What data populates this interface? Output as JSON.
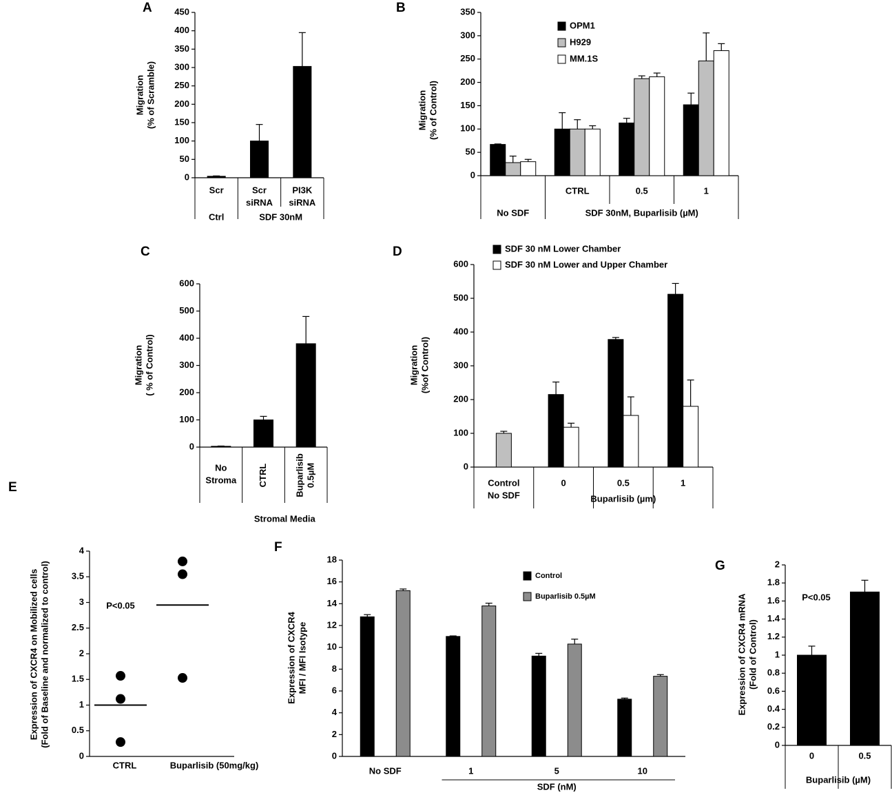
{
  "chart_data": [
    {
      "type": "bar",
      "panel": "A",
      "ylabel": [
        "Migration",
        "(% of Scramble)"
      ],
      "categories": [
        "Scr",
        [
          "Scr",
          "siRNA"
        ],
        [
          "PI3K",
          "siRNA"
        ]
      ],
      "groups": [
        {
          "label": "Ctrl",
          "count": 1
        },
        {
          "label": "SDF 30nM",
          "count": 2
        }
      ],
      "series": [
        {
          "color": "#000000",
          "values": [
            4,
            100,
            303
          ],
          "errors": [
            1,
            45,
            92
          ]
        }
      ],
      "ylim": [
        0,
        450
      ],
      "yticks": [
        0,
        50,
        100,
        150,
        200,
        250,
        300,
        350,
        400,
        450
      ]
    },
    {
      "type": "bar",
      "panel": "B",
      "ylabel": [
        "Migration",
        "(% of Control)"
      ],
      "categories": [
        null,
        "CTRL",
        "0.5",
        "1"
      ],
      "groups": [
        {
          "label": "No SDF",
          "count": 1
        },
        {
          "label": "SDF 30nM, Buparlisib (µM)",
          "count": 3
        }
      ],
      "series": [
        {
          "name": "OPM1",
          "color": "#000000",
          "values": [
            67,
            100,
            113,
            152
          ],
          "errors": [
            1,
            35,
            10,
            25
          ]
        },
        {
          "name": "H929",
          "color": "#bfbfbf",
          "values": [
            28,
            100,
            208,
            246
          ],
          "errors": [
            14,
            20,
            6,
            60
          ]
        },
        {
          "name": "MM.1S",
          "color": "#ffffff",
          "values": [
            30,
            100,
            212,
            268
          ],
          "errors": [
            5,
            7,
            8,
            15
          ]
        }
      ],
      "ylim": [
        0,
        350
      ],
      "yticks": [
        0,
        50,
        100,
        150,
        200,
        250,
        300,
        350
      ]
    },
    {
      "type": "bar",
      "panel": "C",
      "ylabel": [
        "Migration",
        "( % of Control)"
      ],
      "categories": [
        [
          "No",
          "Stroma"
        ],
        "CTRL",
        [
          "Buparlisib",
          "0.5µM"
        ]
      ],
      "rotated": [
        false,
        true,
        true
      ],
      "groups": [
        {
          "label": null,
          "count": 1
        },
        {
          "label": "Stromal Media",
          "count": 2
        }
      ],
      "series": [
        {
          "color": "#000000",
          "values": [
            3,
            100,
            380
          ],
          "errors": [
            1,
            13,
            100
          ]
        }
      ],
      "ylim": [
        0,
        600
      ],
      "yticks": [
        0,
        100,
        200,
        300,
        400,
        500,
        600
      ]
    },
    {
      "type": "bar",
      "panel": "D",
      "ylabel": [
        "Migration",
        "(%of Control)"
      ],
      "categories": [
        [
          "Control",
          "No SDF"
        ],
        "0",
        "0.5",
        "1"
      ],
      "groups": [
        {
          "label": null,
          "count": 1
        },
        {
          "label": "Buparlisib (µm)",
          "count": 3
        }
      ],
      "series": [
        {
          "name": "SDF 30 nM Lower Chamber",
          "color": "#000000",
          "colors": [
            "#bfbfbf",
            "#000000",
            "#000000",
            "#000000"
          ],
          "values": [
            100,
            215,
            378,
            512
          ],
          "errors": [
            6,
            37,
            6,
            32
          ]
        },
        {
          "name": "SDF 30 nM Lower and Upper Chamber",
          "color": "#ffffff",
          "values": [
            null,
            118,
            153,
            180
          ],
          "errors": [
            null,
            12,
            55,
            78
          ]
        }
      ],
      "ylim": [
        0,
        600
      ],
      "yticks": [
        0,
        100,
        200,
        300,
        400,
        500,
        600
      ]
    },
    {
      "type": "scatter",
      "panel": "E",
      "ylabel": [
        "Expression of CXCR4 on Mobilized cells",
        "(Fold of Baseline and normalized to control)"
      ],
      "categories": [
        "CTRL",
        "Buparlisib (50mg/kg)"
      ],
      "points": [
        [
          1.57,
          1.12,
          0.28
        ],
        [
          3.8,
          3.55,
          1.53
        ]
      ],
      "means": [
        1.0,
        2.95
      ],
      "color": "#000000",
      "annotation": "P<0.05",
      "ylim": [
        0,
        4
      ],
      "yticks": [
        0,
        0.5,
        1,
        1.5,
        2,
        2.5,
        3,
        3.5,
        4
      ]
    },
    {
      "type": "bar",
      "panel": "F",
      "ylabel": [
        "Expression of CXCR4",
        "MFI / MFI Isotype"
      ],
      "categories": [
        "No SDF",
        "1",
        "5",
        "10"
      ],
      "groups": [
        {
          "label": null,
          "count": 1
        },
        {
          "label": "SDF (nM)",
          "count": 3
        }
      ],
      "series": [
        {
          "name": "Control",
          "color": "#000000",
          "values": [
            12.8,
            11.0,
            9.2,
            5.25
          ],
          "errors": [
            0.2,
            0.05,
            0.25,
            0.1
          ]
        },
        {
          "name": "Buparlisib 0.5µM",
          "color": "#8c8c8c",
          "values": [
            15.2,
            13.8,
            10.3,
            7.35
          ],
          "errors": [
            0.15,
            0.25,
            0.45,
            0.15
          ]
        }
      ],
      "ylim": [
        0,
        18
      ],
      "yticks": [
        0,
        2,
        4,
        6,
        8,
        10,
        12,
        14,
        16,
        18
      ]
    },
    {
      "type": "bar",
      "panel": "G",
      "ylabel": [
        "Expression of CXCR4 mRNA",
        "(Fold of Control)"
      ],
      "categories": [
        "0",
        "0.5"
      ],
      "groups": [
        {
          "label": "Buparlisib (µM)",
          "count": 2
        }
      ],
      "series": [
        {
          "color": "#000000",
          "values": [
            1.0,
            1.7
          ],
          "errors": [
            0.1,
            0.13
          ]
        }
      ],
      "annotation": "P<0.05",
      "ylim": [
        0,
        2
      ],
      "yticks": [
        0,
        0.2,
        0.4,
        0.6,
        0.8,
        1,
        1.2,
        1.4,
        1.6,
        1.8,
        2
      ]
    }
  ]
}
